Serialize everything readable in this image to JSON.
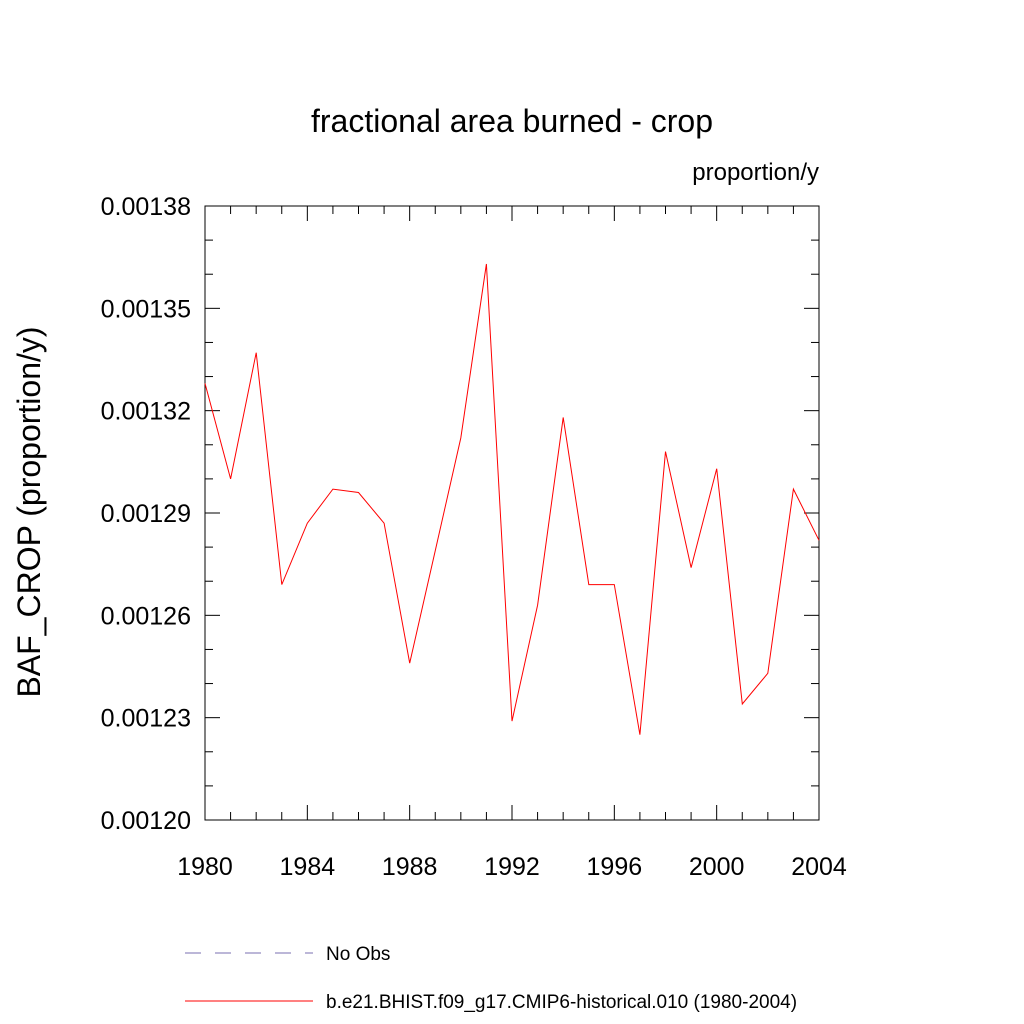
{
  "chart_data": {
    "type": "line",
    "title": "fractional area burned - crop",
    "units": "proportion/y",
    "ylabel": "BAF_CROP  (proportion/y)",
    "xlabel": "",
    "xlim": [
      1980,
      2004
    ],
    "ylim": [
      0.0012,
      0.00138
    ],
    "x_ticks": [
      1980,
      1984,
      1988,
      1992,
      1996,
      2000,
      2004
    ],
    "x_tick_labels": [
      "1980",
      "1984",
      "1988",
      "1992",
      "1996",
      "2000",
      "2004"
    ],
    "y_ticks": [
      0.0012,
      0.00123,
      0.00126,
      0.00129,
      0.00132,
      0.00135,
      0.00138
    ],
    "y_tick_labels": [
      "0.00120",
      "0.00123",
      "0.00126",
      "0.00129",
      "0.00132",
      "0.00135",
      "0.00138"
    ],
    "series": [
      {
        "name": "b.e21.BHIST.f09_g17.CMIP6-historical.010 (1980-2004)",
        "color": "#ff0000",
        "style": "solid",
        "x": [
          1980,
          1981,
          1982,
          1983,
          1984,
          1985,
          1986,
          1987,
          1988,
          1989,
          1990,
          1991,
          1992,
          1993,
          1994,
          1995,
          1996,
          1997,
          1998,
          1999,
          2000,
          2001,
          2002,
          2003,
          2004
        ],
        "y": [
          0.001328,
          0.0013,
          0.001337,
          0.001269,
          0.001287,
          0.001297,
          0.001296,
          0.001287,
          0.001246,
          0.001279,
          0.001312,
          0.001363,
          0.001229,
          0.001263,
          0.001318,
          0.001269,
          0.001269,
          0.001225,
          0.001308,
          0.001274,
          0.001303,
          0.001234,
          0.001243,
          0.001297,
          0.001282
        ]
      }
    ],
    "legend": [
      {
        "label": "No Obs",
        "color": "#7a6fb0",
        "style": "dashed"
      },
      {
        "label": "b.e21.BHIST.f09_g17.CMIP6-historical.010 (1980-2004)",
        "color": "#ff0000",
        "style": "solid"
      }
    ]
  }
}
